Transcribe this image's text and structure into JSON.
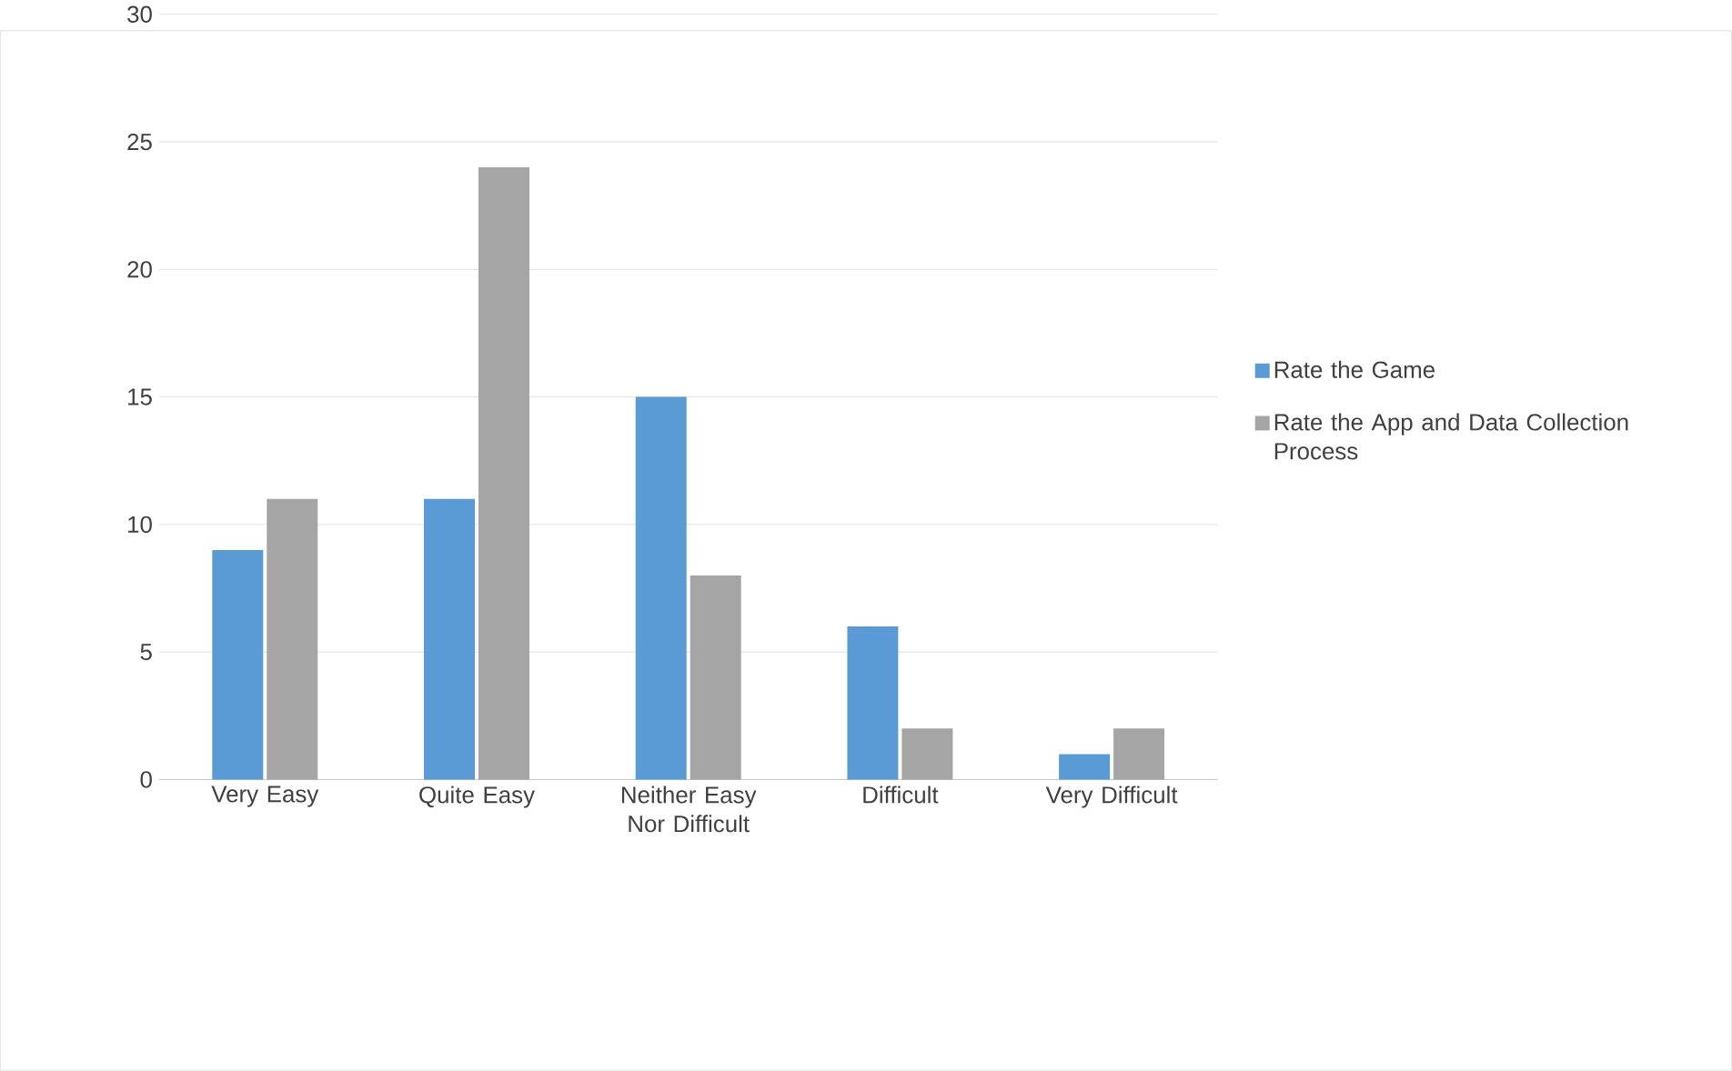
{
  "chart_data": {
    "type": "bar",
    "categories": [
      "Very Easy",
      "Quite Easy",
      "Neither Easy Nor Difficult",
      "Difficult",
      "Very Difficult"
    ],
    "series": [
      {
        "name": "Rate the Game",
        "color": "#5b9bd5",
        "values": [
          9,
          11,
          15,
          6,
          1
        ]
      },
      {
        "name": "Rate the App and Data Collection Process",
        "color": "#a5a5a5",
        "values": [
          11,
          24,
          8,
          2,
          2
        ]
      }
    ],
    "ylim": [
      0,
      30
    ],
    "yticks": [
      0,
      5,
      10,
      15,
      20,
      25,
      30
    ],
    "grid": "y",
    "legend": "right"
  }
}
